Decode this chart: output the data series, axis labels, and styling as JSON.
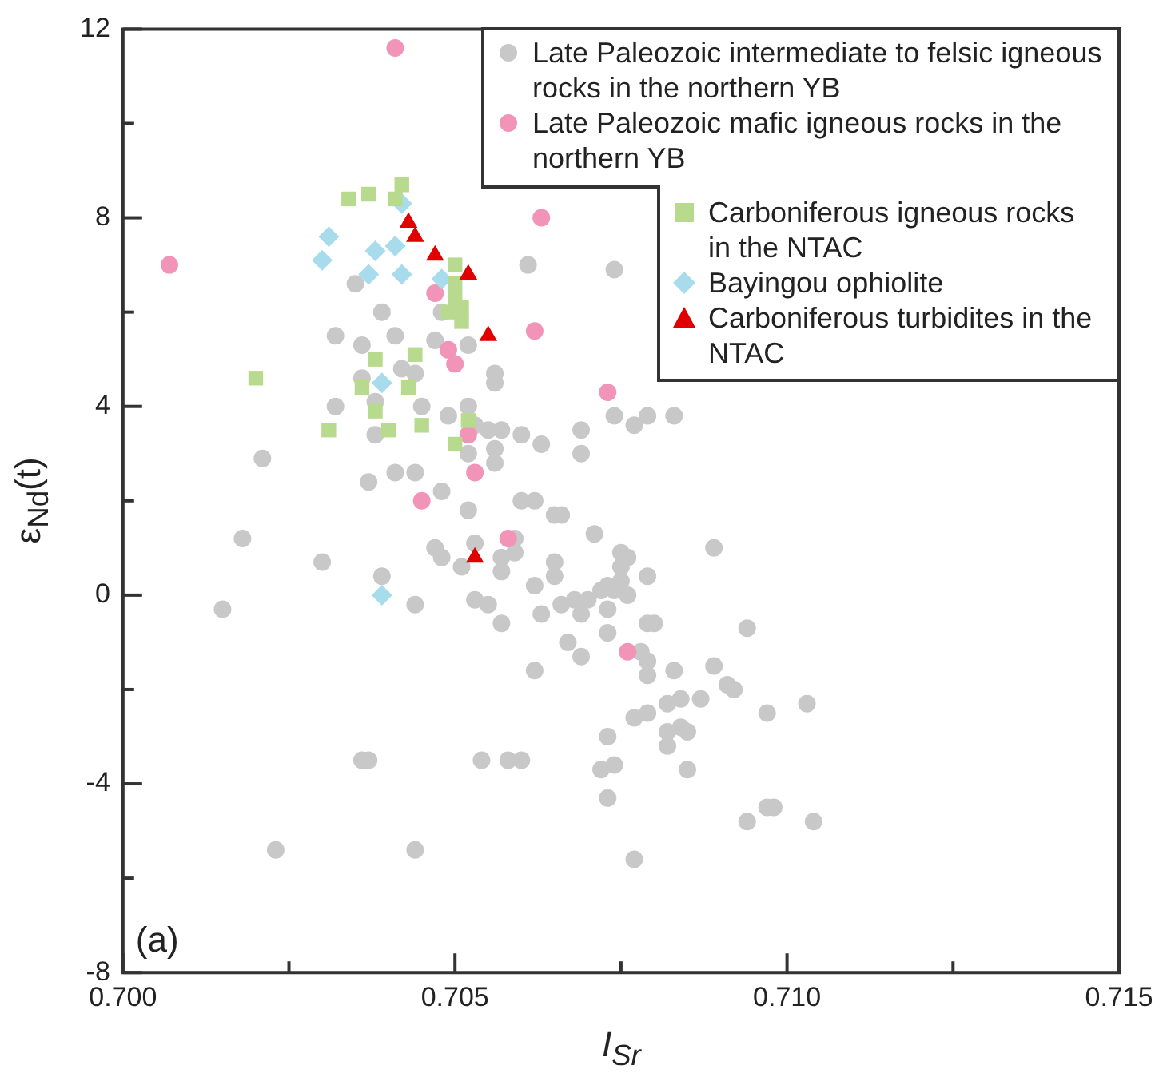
{
  "chart_data": {
    "type": "scatter",
    "xlabel": "I$_{Sr}$",
    "ylabel": "ε$_{Nd}$(t)",
    "legend": "top right",
    "annotations": [
      "(a)"
    ],
    "xlim": [
      0.7,
      0.715
    ],
    "ylim": [
      -8,
      12
    ],
    "xticks": [
      {
        "value": 0.7,
        "label": "0.700"
      },
      {
        "value": 0.7025,
        "label": null
      },
      {
        "value": 0.705,
        "label": "0.705"
      },
      {
        "value": 0.7075,
        "label": null
      },
      {
        "value": 0.71,
        "label": "0.710"
      },
      {
        "value": 0.7125,
        "label": null
      },
      {
        "value": 0.715,
        "label": "0.715"
      }
    ],
    "yticks": [
      -8,
      {
        "value": -6,
        "label": null
      },
      -4,
      {
        "value": -2,
        "label": null
      },
      0,
      {
        "value": 2,
        "label": null
      },
      4,
      {
        "value": 6,
        "label": null
      },
      8,
      {
        "value": 10,
        "label": null
      },
      12
    ],
    "series": [
      {
        "name": "Late Paleozoic intermediate to felsic igneous rocks in the northern YB",
        "color": "#c8c8c8",
        "marker": "circle",
        "x": [
          0.7035,
          0.7039,
          0.7048,
          0.7032,
          0.7036,
          0.7041,
          0.7047,
          0.7052,
          0.7042,
          0.7044,
          0.7056,
          0.7056,
          0.7036,
          0.7032,
          0.7038,
          0.7045,
          0.7049,
          0.7052,
          0.7053,
          0.7055,
          0.7057,
          0.7038,
          0.7021,
          0.7056,
          0.7056,
          0.7052,
          0.7037,
          0.7041,
          0.7044,
          0.7048,
          0.7052,
          0.7061,
          0.7074,
          0.706,
          0.7063,
          0.7069,
          0.7069,
          0.7074,
          0.7077,
          0.7079,
          0.7083,
          0.706,
          0.7062,
          0.7065,
          0.7066,
          0.7071,
          0.703,
          0.7039,
          0.7044,
          0.7047,
          0.7048,
          0.7051,
          0.7053,
          0.7057,
          0.7059,
          0.7059,
          0.7057,
          0.7062,
          0.7065,
          0.7065,
          0.7053,
          0.7055,
          0.7075,
          0.7076,
          0.7075,
          0.7075,
          0.7073,
          0.7072,
          0.7074,
          0.7076,
          0.7079,
          0.7089,
          0.7057,
          0.7063,
          0.7066,
          0.7068,
          0.707,
          0.7069,
          0.7073,
          0.7073,
          0.7067,
          0.7069,
          0.7062,
          0.7079,
          0.708,
          0.7078,
          0.7079,
          0.7079,
          0.7083,
          0.7089,
          0.7091,
          0.7092,
          0.7094,
          0.7087,
          0.7082,
          0.7084,
          0.7097,
          0.7103,
          0.7077,
          0.7079,
          0.7082,
          0.7084,
          0.7085,
          0.7082,
          0.7073,
          0.7054,
          0.7058,
          0.706,
          0.7072,
          0.7074,
          0.7085,
          0.7073,
          0.7094,
          0.7097,
          0.7098,
          0.7104,
          0.7077,
          0.7018,
          0.7015,
          0.7036,
          0.7037,
          0.7023,
          0.7044
        ],
        "values": [
          6.6,
          6.0,
          6.0,
          5.5,
          5.3,
          5.5,
          5.4,
          5.3,
          4.8,
          4.7,
          4.7,
          4.5,
          4.6,
          4.0,
          4.1,
          4.0,
          3.8,
          4.0,
          3.6,
          3.5,
          3.5,
          3.4,
          2.9,
          3.1,
          2.8,
          3.0,
          2.4,
          2.6,
          2.6,
          2.2,
          1.8,
          7.0,
          6.9,
          3.4,
          3.2,
          3.5,
          3.0,
          3.8,
          3.6,
          3.8,
          3.8,
          2.0,
          2.0,
          1.7,
          1.7,
          1.3,
          0.7,
          0.4,
          -0.2,
          1.0,
          0.8,
          0.6,
          1.1,
          0.8,
          1.2,
          0.9,
          0.5,
          0.2,
          0.4,
          0.7,
          -0.1,
          -0.2,
          0.9,
          0.8,
          0.6,
          0.3,
          0.2,
          0.1,
          0.1,
          0.0,
          0.4,
          1.0,
          -0.6,
          -0.4,
          -0.2,
          -0.1,
          -0.1,
          -0.4,
          -0.3,
          -0.8,
          -1.0,
          -1.3,
          -1.6,
          -0.6,
          -0.6,
          -1.2,
          -1.4,
          -1.7,
          -1.6,
          -1.5,
          -1.9,
          -2.0,
          -0.7,
          -2.2,
          -2.3,
          -2.2,
          -2.5,
          -2.3,
          -2.6,
          -2.5,
          -2.9,
          -2.8,
          -2.9,
          -3.2,
          -3.0,
          -3.5,
          -3.5,
          -3.5,
          -3.7,
          -3.6,
          -3.7,
          -4.3,
          -4.8,
          -4.5,
          -4.5,
          -4.8,
          -5.6,
          1.2,
          -0.3,
          -3.5,
          -3.5,
          -5.4,
          -5.4
        ]
      },
      {
        "name": "Late Paleozoic mafic igneous rocks in the northern YB",
        "color": "#f293b8",
        "marker": "circle",
        "x": [
          0.7041,
          0.7007,
          0.7063,
          0.7047,
          0.7049,
          0.705,
          0.7062,
          0.7073,
          0.7052,
          0.7053,
          0.7045,
          0.7058,
          0.7076
        ],
        "values": [
          11.6,
          7.0,
          8.0,
          6.4,
          5.2,
          4.9,
          5.6,
          4.3,
          3.4,
          2.6,
          2.0,
          1.2,
          -1.2
        ]
      },
      {
        "name": "Carboniferous igneous rocks in the NTAC",
        "color": "#b8da8e",
        "marker": "square",
        "x": [
          0.7034,
          0.7037,
          0.7041,
          0.7042,
          0.705,
          0.705,
          0.705,
          0.7049,
          0.7051,
          0.7051,
          0.7038,
          0.7044,
          0.702,
          0.7036,
          0.7043,
          0.7038,
          0.7052,
          0.7031,
          0.704,
          0.7045,
          0.705
        ],
        "values": [
          8.4,
          8.5,
          8.4,
          8.7,
          7.0,
          6.6,
          6.3,
          6.0,
          5.8,
          6.1,
          5.0,
          5.1,
          4.6,
          4.4,
          4.4,
          3.9,
          3.7,
          3.5,
          3.5,
          3.6,
          3.2
        ]
      },
      {
        "name": "Bayingou ophiolite",
        "color": "#a8dcec",
        "marker": "diamond",
        "x": [
          0.7031,
          0.703,
          0.7038,
          0.7041,
          0.7037,
          0.7042,
          0.7048,
          0.7039,
          0.7042,
          0.7039
        ],
        "values": [
          7.6,
          7.1,
          7.3,
          7.4,
          6.8,
          6.8,
          6.7,
          4.5,
          8.3,
          0.0
        ]
      },
      {
        "name": "Carboniferous turbidites in the NTAC",
        "color": "#e00000",
        "marker": "triangle",
        "x": [
          0.7043,
          0.7044,
          0.7047,
          0.7052,
          0.7055,
          0.7053
        ],
        "values": [
          7.9,
          7.6,
          7.2,
          6.8,
          5.5,
          0.8
        ]
      }
    ]
  }
}
